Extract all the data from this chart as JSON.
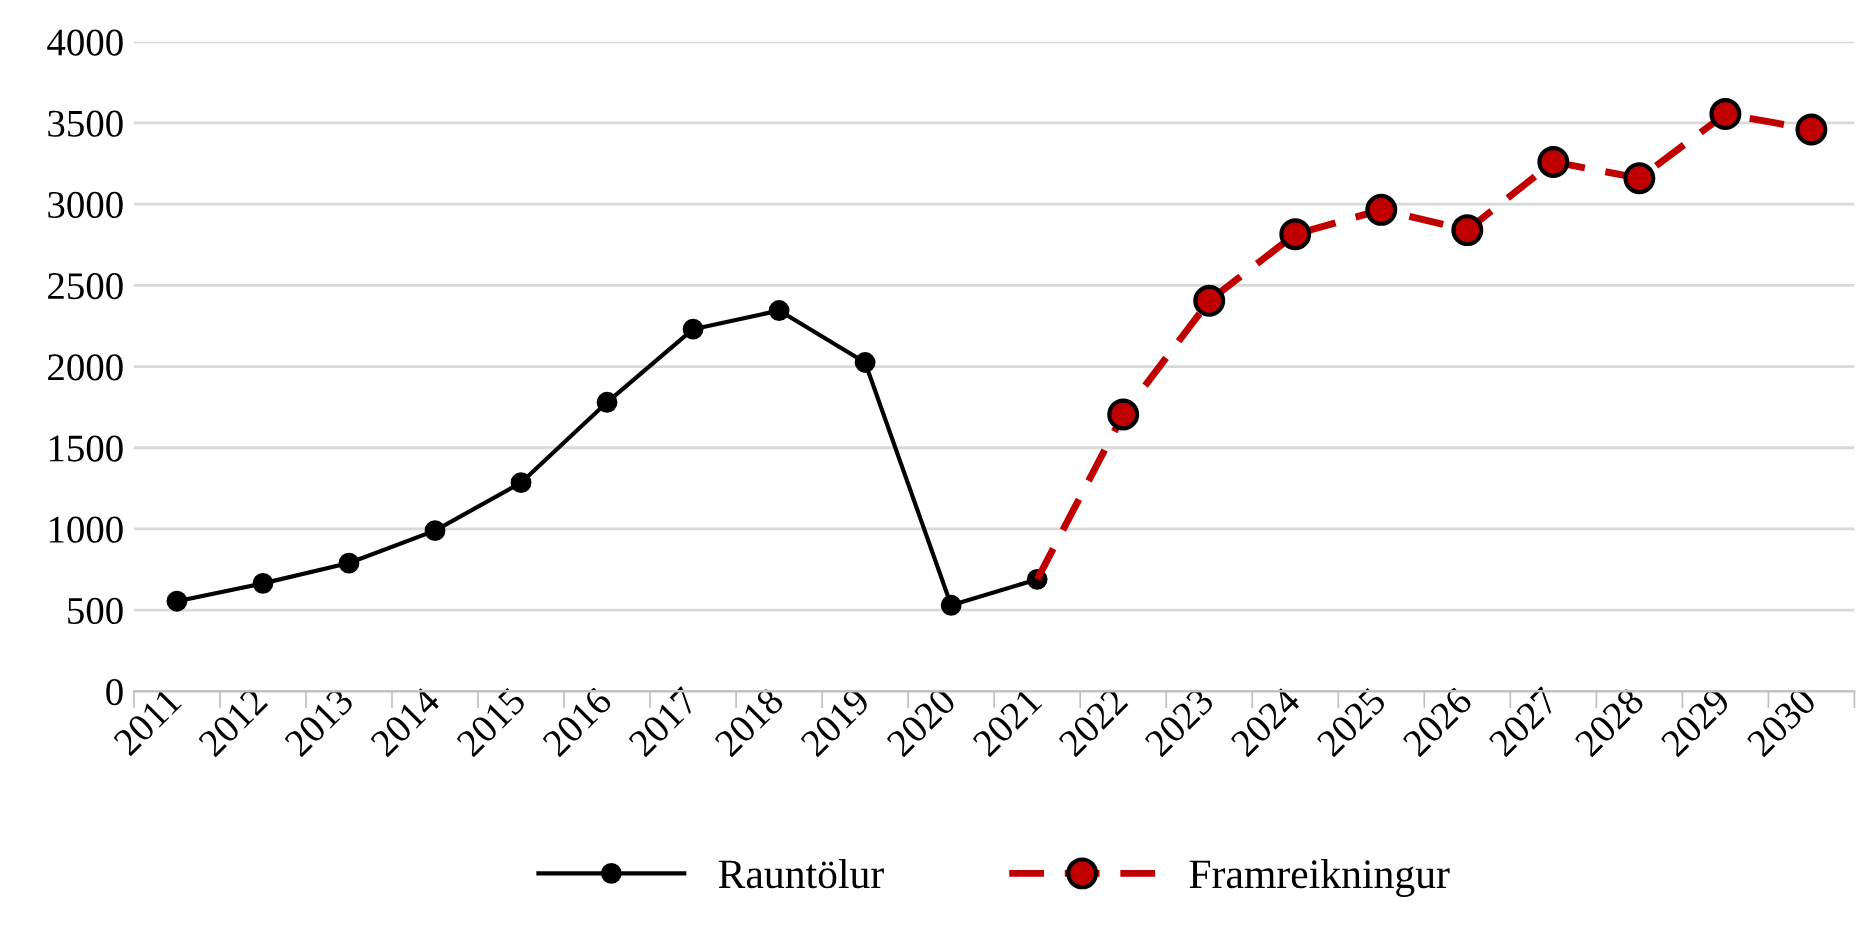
{
  "chart_data": {
    "type": "line",
    "categories": [
      "2011",
      "2012",
      "2013",
      "2014",
      "2015",
      "2016",
      "2017",
      "2018",
      "2019",
      "2020",
      "2021",
      "2022",
      "2023",
      "2024",
      "2025",
      "2026",
      "2027",
      "2028",
      "2029",
      "2030"
    ],
    "series": [
      {
        "name": "Rauntölur",
        "color": "#000000",
        "marker": "circle",
        "line_style": "solid",
        "values": [
          555,
          665,
          790,
          990,
          1285,
          1780,
          2230,
          2345,
          2025,
          530,
          690,
          null,
          null,
          null,
          null,
          null,
          null,
          null,
          null,
          null
        ]
      },
      {
        "name": "Framreikningur",
        "color": "#c00000",
        "marker": "circle",
        "line_style": "dashed",
        "values": [
          null,
          null,
          null,
          null,
          null,
          null,
          null,
          null,
          null,
          null,
          690,
          1705,
          2405,
          2815,
          2965,
          2840,
          3260,
          3160,
          3555,
          3460
        ]
      }
    ],
    "ylim": [
      0,
      4000
    ],
    "yticks": [
      0,
      500,
      1000,
      1500,
      2000,
      2500,
      3000,
      3500,
      4000
    ],
    "grid": "y",
    "legend": "bottom"
  }
}
